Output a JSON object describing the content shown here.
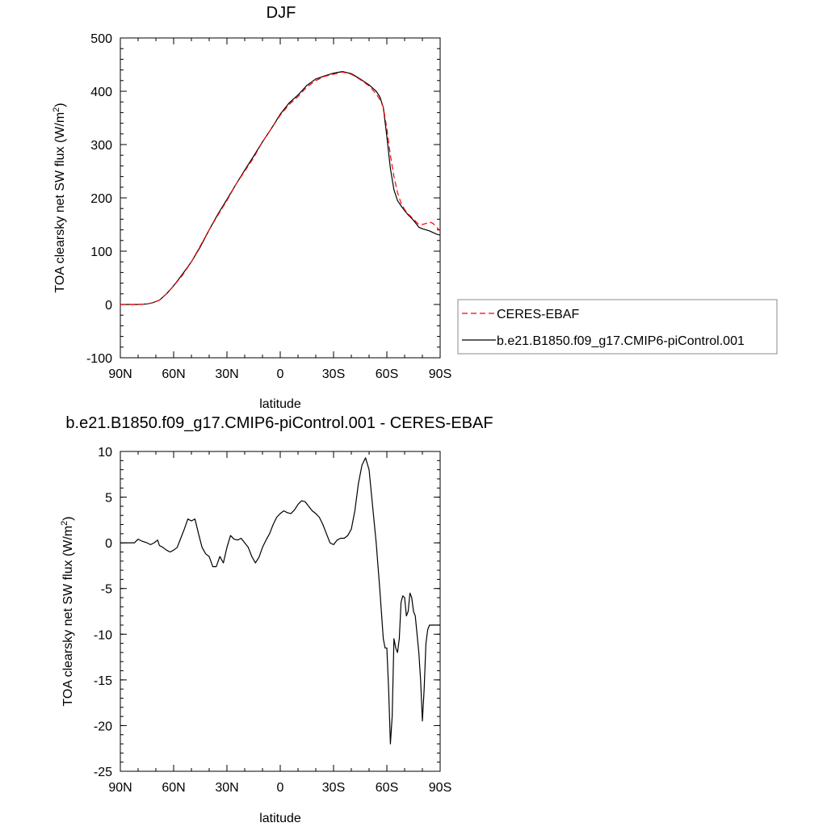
{
  "chart_data": [
    {
      "type": "line",
      "title": "DJF",
      "xlabel": "latitude",
      "ylabel": "TOA clearsky net SW flux (W/m",
      "ylabel_sup": "2",
      "ylabel_end": ")",
      "xlim": [
        90,
        -90
      ],
      "ylim": [
        -100,
        500
      ],
      "xticks": [
        90,
        60,
        30,
        0,
        -30,
        -60,
        -90
      ],
      "xtick_labels": [
        "90N",
        "60N",
        "30N",
        "0",
        "30S",
        "60S",
        "90S"
      ],
      "yticks": [
        -100,
        0,
        100,
        200,
        300,
        400,
        500
      ],
      "ytick_labels": [
        "-100",
        "0",
        "100",
        "200",
        "300",
        "400",
        "500"
      ],
      "legend_position": "right",
      "colors": {
        "obs": "#ff0000",
        "model": "#000000"
      },
      "series": [
        {
          "name": "CERES-EBAF",
          "style": "dashed",
          "color": "#ff0000",
          "x": [
            90,
            80,
            75,
            72,
            68,
            64,
            60,
            55,
            50,
            45,
            40,
            35,
            30,
            25,
            20,
            15,
            10,
            5,
            0,
            -5,
            -10,
            -15,
            -20,
            -25,
            -30,
            -35,
            -40,
            -45,
            -50,
            -54,
            -56,
            -58,
            -60,
            -62,
            -64,
            -66,
            -68,
            -70,
            -72,
            -75,
            -78,
            -80,
            -82,
            -84,
            -86,
            -88,
            -90
          ],
          "y": [
            0,
            0,
            1,
            3,
            8,
            20,
            35,
            55,
            80,
            110,
            140,
            168,
            195,
            225,
            250,
            275,
            305,
            330,
            355,
            375,
            390,
            408,
            420,
            428,
            432,
            436,
            432,
            422,
            410,
            395,
            385,
            370,
            330,
            280,
            240,
            210,
            190,
            178,
            170,
            160,
            150,
            150,
            152,
            155,
            152,
            145,
            138
          ]
        },
        {
          "name": "b.e21.B1850.f09_g17.CMIP6-piControl.001",
          "style": "solid",
          "color": "#000000",
          "x": [
            90,
            80,
            75,
            72,
            68,
            64,
            60,
            55,
            50,
            45,
            40,
            35,
            30,
            25,
            20,
            15,
            10,
            5,
            0,
            -5,
            -10,
            -15,
            -20,
            -25,
            -30,
            -35,
            -40,
            -45,
            -50,
            -54,
            -56,
            -58,
            -60,
            -62,
            -64,
            -66,
            -68,
            -70,
            -72,
            -75,
            -78,
            -80,
            -82,
            -84,
            -86,
            -88,
            -90
          ],
          "y": [
            0,
            0,
            1,
            3,
            8,
            20,
            35,
            57,
            80,
            108,
            140,
            170,
            197,
            225,
            252,
            278,
            305,
            330,
            357,
            378,
            393,
            411,
            423,
            429,
            434,
            437,
            433,
            423,
            412,
            400,
            390,
            370,
            315,
            255,
            215,
            195,
            185,
            176,
            168,
            158,
            145,
            142,
            140,
            138,
            135,
            132,
            130
          ]
        }
      ]
    },
    {
      "type": "line",
      "title": "b.e21.B1850.f09_g17.CMIP6-piControl.001 - CERES-EBAF",
      "xlabel": "latitude",
      "ylabel": "TOA clearsky net SW flux (W/m",
      "ylabel_sup": "2",
      "ylabel_end": ")",
      "xlim": [
        90,
        -90
      ],
      "ylim": [
        -25,
        10
      ],
      "xticks": [
        90,
        60,
        30,
        0,
        -30,
        -60,
        -90
      ],
      "xtick_labels": [
        "90N",
        "60N",
        "30N",
        "0",
        "30S",
        "60S",
        "90S"
      ],
      "yticks": [
        -25,
        -20,
        -15,
        -10,
        -5,
        0,
        5,
        10
      ],
      "ytick_labels": [
        "-25",
        "-20",
        "-15",
        "-10",
        "-5",
        "0",
        "5",
        "10"
      ],
      "series": [
        {
          "color": "#000000",
          "style": "solid",
          "x": [
            90,
            82,
            80,
            78,
            75,
            73,
            71,
            69,
            68,
            66,
            64,
            62,
            60,
            58,
            56,
            54,
            52,
            50,
            48,
            46,
            44,
            42,
            40,
            38,
            36,
            34,
            32,
            30,
            28,
            26,
            24,
            22,
            20,
            18,
            16,
            14,
            12,
            10,
            8,
            6,
            4,
            2,
            0,
            -2,
            -4,
            -6,
            -8,
            -10,
            -12,
            -14,
            -16,
            -18,
            -20,
            -22,
            -24,
            -26,
            -28,
            -30,
            -32,
            -34,
            -36,
            -38,
            -40,
            -42,
            -44,
            -46,
            -48,
            -50,
            -52,
            -54,
            -56,
            -58,
            -59,
            -60,
            -61,
            -62,
            -63,
            -64,
            -65,
            -66,
            -67,
            -68,
            -69,
            -70,
            -71,
            -72,
            -73,
            -74,
            -75,
            -76,
            -77,
            -78,
            -79,
            -80,
            -81,
            -82,
            -83,
            -84,
            -85,
            -86,
            -87,
            -88,
            -89,
            -90
          ],
          "y": [
            0,
            0,
            0.4,
            0.2,
            0,
            -0.2,
            0,
            0.3,
            -0.3,
            -0.5,
            -0.8,
            -1.0,
            -0.8,
            -0.5,
            0.5,
            1.5,
            2.6,
            2.4,
            2.6,
            1.0,
            -0.5,
            -1.2,
            -1.5,
            -2.6,
            -2.6,
            -1.5,
            -2.2,
            -0.5,
            0.8,
            0.4,
            0.3,
            0.5,
            0,
            -0.5,
            -1.5,
            -2.2,
            -1.6,
            -0.5,
            0.3,
            1.0,
            2.0,
            2.8,
            3.2,
            3.5,
            3.3,
            3.2,
            3.6,
            4.2,
            4.6,
            4.5,
            4.0,
            3.5,
            3.2,
            2.8,
            2.0,
            1.0,
            0,
            -0.2,
            0.3,
            0.5,
            0.5,
            0.8,
            1.5,
            3.5,
            6.5,
            8.5,
            9.3,
            8.0,
            4.0,
            0,
            -5.0,
            -10.5,
            -11.5,
            -11.5,
            -16.0,
            -22.0,
            -19.0,
            -10.5,
            -11.5,
            -12.0,
            -10.5,
            -6.5,
            -5.8,
            -6.0,
            -8.0,
            -7.5,
            -5.5,
            -6.0,
            -7.5,
            -8.0,
            -10.0,
            -12.0,
            -15.0,
            -19.5,
            -16.0,
            -11.0,
            -9.5,
            -9.0,
            -9.0,
            -9.0,
            -9.0,
            -9.0,
            -9.0,
            -9.0
          ]
        }
      ]
    }
  ]
}
